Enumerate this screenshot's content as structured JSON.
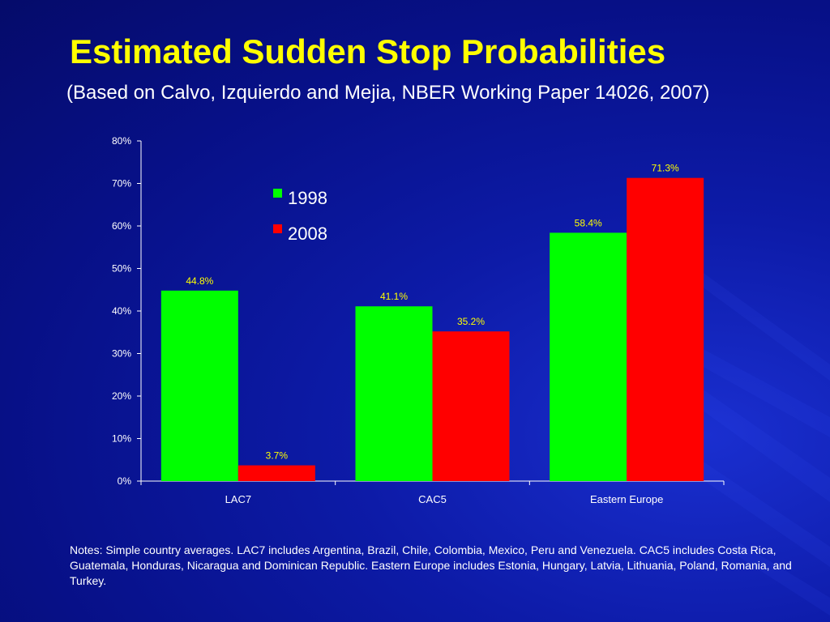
{
  "title": "Estimated Sudden Stop Probabilities",
  "subtitle": "(Based on Calvo, Izquierdo and Mejia, NBER Working Paper 14026, 2007)",
  "notes": "Notes: Simple country averages. LAC7 includes Argentina, Brazil, Chile, Colombia, Mexico, Peru and Venezuela. CAC5 includes Costa Rica, Guatemala, Honduras, Nicaragua and Dominican Republic. Eastern Europe includes Estonia, Hungary, Latvia, Lithuania, Poland, Romania, and Turkey.",
  "colors": {
    "background": "#0a1597",
    "title": "#ffff00",
    "text": "#ffffff",
    "data_label": "#ffff00",
    "series_1998": "#00ff00",
    "series_2008": "#ff0000"
  },
  "chart_data": {
    "type": "bar",
    "title": "",
    "xlabel": "",
    "ylabel": "",
    "categories": [
      "LAC7",
      "CAC5",
      "Eastern Europe"
    ],
    "series": [
      {
        "name": "1998",
        "values": [
          44.8,
          41.1,
          58.4
        ],
        "labels": [
          "44.8%",
          "41.1%",
          "58.4%"
        ],
        "color": "#00ff00"
      },
      {
        "name": "2008",
        "values": [
          3.7,
          35.2,
          71.3
        ],
        "labels": [
          "3.7%",
          "35.2%",
          "71.3%"
        ],
        "color": "#ff0000"
      }
    ],
    "ylim": [
      0,
      80
    ],
    "yticks": [
      "0%",
      "10%",
      "20%",
      "30%",
      "40%",
      "50%",
      "60%",
      "70%",
      "80%"
    ],
    "grid": false,
    "legend_position": "upper-left inside plot"
  }
}
